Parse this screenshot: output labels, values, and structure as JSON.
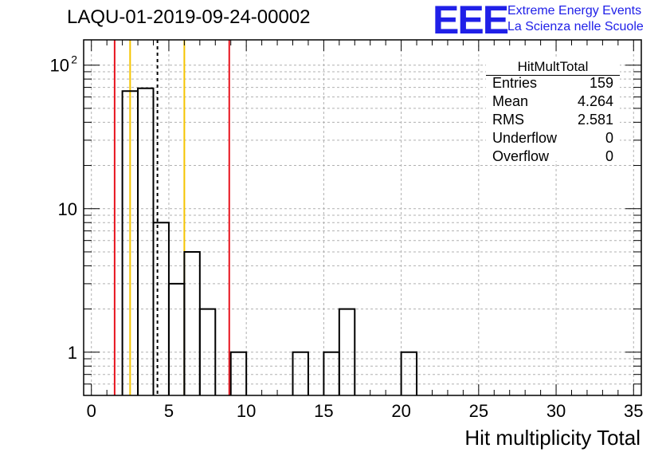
{
  "title": "LAQU-01-2019-09-24-00002",
  "logo": {
    "text": "EEE",
    "line1": "Extreme Energy Events",
    "line2": "La Scienza nelle Scuole",
    "color": "#2020e8"
  },
  "stats": {
    "title": "HitMultTotal",
    "rows": [
      {
        "key": "Entries",
        "value": "159"
      },
      {
        "key": "Mean",
        "value": "4.264"
      },
      {
        "key": "RMS",
        "value": "2.581"
      },
      {
        "key": "Underflow",
        "value": "0"
      },
      {
        "key": "Overflow",
        "value": "0"
      }
    ]
  },
  "chart_data": {
    "type": "bar",
    "title": "LAQU-01-2019-09-24-00002",
    "xlabel": "Hit multiplicity Total",
    "ylabel": "",
    "xlim": [
      -0.5,
      35.5
    ],
    "ylim": [
      0.5,
      150
    ],
    "yscale": "log",
    "grid": true,
    "xticks": [
      0,
      5,
      10,
      15,
      20,
      25,
      30,
      35
    ],
    "yticks": [
      {
        "value": 1,
        "label": "1"
      },
      {
        "value": 10,
        "label": "10"
      },
      {
        "value": 100,
        "label": "10",
        "exponent": "2"
      }
    ],
    "bin_width": 1,
    "bins": [
      {
        "x": 2.5,
        "value": 66
      },
      {
        "x": 3.5,
        "value": 69
      },
      {
        "x": 4.5,
        "value": 8
      },
      {
        "x": 5.5,
        "value": 3
      },
      {
        "x": 6.5,
        "value": 5
      },
      {
        "x": 7.5,
        "value": 2
      },
      {
        "x": 9.5,
        "value": 1
      },
      {
        "x": 13.5,
        "value": 1
      },
      {
        "x": 15.5,
        "value": 1
      },
      {
        "x": 16.5,
        "value": 2
      },
      {
        "x": 20.5,
        "value": 1
      }
    ],
    "vlines": [
      {
        "x": 1.5,
        "color": "#e8141e",
        "style": "solid"
      },
      {
        "x": 2.5,
        "color": "#f5c400",
        "style": "solid"
      },
      {
        "x": 4.264,
        "color": "#000000",
        "style": "dashed"
      },
      {
        "x": 6.0,
        "color": "#f5c400",
        "style": "solid"
      },
      {
        "x": 8.9,
        "color": "#e8141e",
        "style": "solid"
      }
    ],
    "legend": "top-right"
  }
}
